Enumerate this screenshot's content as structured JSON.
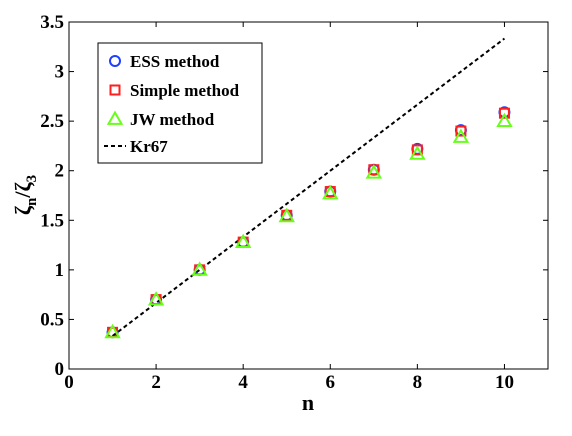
{
  "chart_data": {
    "type": "scatter",
    "xlabel": "n",
    "ylabel": {
      "base1": "ζ",
      "sub1": "n",
      "sep": "/",
      "base2": "ζ",
      "sub2": "3"
    },
    "xlim": [
      0,
      11
    ],
    "ylim": [
      0,
      3.5
    ],
    "xticks": [
      0,
      2,
      4,
      6,
      8,
      10
    ],
    "yticks": [
      0,
      0.5,
      1,
      1.5,
      2,
      2.5,
      3,
      3.5
    ],
    "xtick_labels": [
      "0",
      "2",
      "4",
      "6",
      "8",
      "10"
    ],
    "ytick_labels": [
      "0",
      "0.5",
      "1",
      "1.5",
      "2",
      "2.5",
      "3",
      "3.5"
    ],
    "grid": false,
    "legend_position": "top-left",
    "series": [
      {
        "name": "ESS method",
        "marker": "circle",
        "color": "#1f3fff",
        "x": [
          1,
          2,
          3,
          4,
          5,
          6,
          7,
          8,
          9,
          10
        ],
        "y": [
          0.37,
          0.7,
          1.0,
          1.28,
          1.55,
          1.79,
          2.01,
          2.22,
          2.41,
          2.59
        ]
      },
      {
        "name": "Simple method",
        "marker": "square",
        "color": "#ff1f1f",
        "x": [
          1,
          2,
          3,
          4,
          5,
          6,
          7,
          8,
          9,
          10
        ],
        "y": [
          0.37,
          0.7,
          1.0,
          1.28,
          1.55,
          1.79,
          2.01,
          2.21,
          2.4,
          2.58
        ]
      },
      {
        "name": "JW method",
        "marker": "triangle",
        "color": "#66ff1a",
        "x": [
          1,
          2,
          3,
          4,
          5,
          6,
          7,
          8,
          9,
          10
        ],
        "y": [
          0.37,
          0.7,
          1.0,
          1.28,
          1.54,
          1.77,
          1.98,
          2.17,
          2.34,
          2.5
        ]
      },
      {
        "name": "Kr67",
        "marker": "dashed-line",
        "color": "#000000",
        "x": [
          1,
          10
        ],
        "y": [
          0.333,
          3.333
        ]
      }
    ]
  }
}
